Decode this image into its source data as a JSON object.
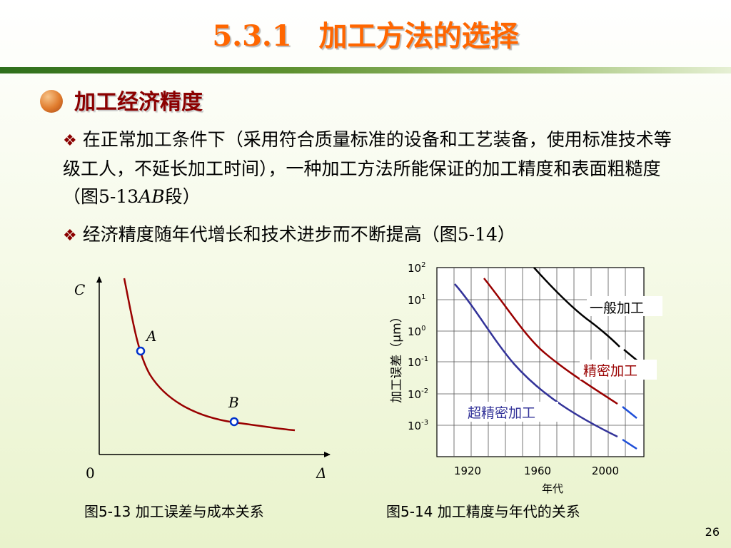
{
  "title": {
    "number": "5.3.1",
    "text": "加工方法的选择"
  },
  "heading": "加工经济精度",
  "paragraphs": {
    "p1_mark": "❖",
    "p1_text": "在正常加工条件下（采用符合质量标准的设备和工艺装备，使用标准技术等级工人，不延长加工时间），一种加工方法所能保证的加工精度和表面粗糙度（图",
    "p1_fig": "5-13",
    "p1_ab": "AB",
    "p1_end": "段）",
    "p2_mark": "❖",
    "p2_text": "经济精度随年代增长和技术进步而不断提高（图",
    "p2_fig": "5-14",
    "p2_end": "）"
  },
  "fig1": {
    "y_axis_label": "C",
    "x_axis_label": "Δ",
    "origin": "0",
    "point_a": "A",
    "point_b": "B",
    "caption": "图5-13  加工误差与成本关系",
    "curve_color": "#990000",
    "point_color": "#0033cc"
  },
  "fig2": {
    "y_axis_label": "加工误差（μm）",
    "x_axis_label": "年代",
    "y_ticks": [
      {
        "base": "10",
        "exp": "2"
      },
      {
        "base": "10",
        "exp": "1"
      },
      {
        "base": "10",
        "exp": "0"
      },
      {
        "base": "10",
        "exp": "-1"
      },
      {
        "base": "10",
        "exp": "-2"
      },
      {
        "base": "10",
        "exp": "-3"
      }
    ],
    "x_ticks": [
      "1920",
      "1960",
      "2000"
    ],
    "series": [
      {
        "name": "一般加工",
        "color": "#000000"
      },
      {
        "name": "精密加工",
        "color": "#990000"
      },
      {
        "name": "超精密加工",
        "color": "#333399"
      }
    ],
    "caption": "图5-14  加工精度与年代的关系"
  },
  "page_number": "26"
}
